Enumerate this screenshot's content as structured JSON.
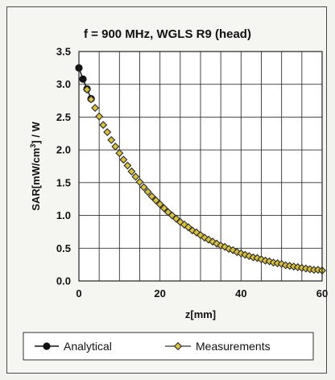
{
  "chart_data": {
    "type": "scatter",
    "title": "f = 900 MHz, WGLS R9 (head)",
    "xlabel": "z[mm]",
    "ylabel": "SAR[mW/cm3] / W",
    "ylabel_parts": {
      "before": "SAR[mW/cm",
      "sup": "3",
      "after": "] / W"
    },
    "xlim": [
      0,
      60
    ],
    "ylim": [
      0,
      3.5
    ],
    "xticks": [
      "0",
      "20",
      "40",
      "60"
    ],
    "yticks": [
      "0.0",
      "0.5",
      "1.0",
      "1.5",
      "2.0",
      "2.5",
      "3.0",
      "3.5"
    ],
    "grid": true,
    "legend_position": "bottom",
    "colors": {
      "analytical": "#111111",
      "measurements_fill": "#d9c23a",
      "measurements_edge": "#2a2a2a",
      "grid": "#333333"
    },
    "series": [
      {
        "name": "Analytical",
        "marker": "filled-circle",
        "x": [
          0,
          1,
          2,
          3
        ],
        "y": [
          3.25,
          3.08,
          2.93,
          2.78
        ]
      },
      {
        "name": "Measurements",
        "marker": "hollow-diamond",
        "x": [
          2,
          3,
          4,
          5,
          6,
          7,
          8,
          9,
          10,
          11,
          12,
          13,
          14,
          15,
          16,
          17,
          18,
          19,
          20,
          21,
          22,
          23,
          24,
          25,
          26,
          27,
          28,
          29,
          30,
          31,
          32,
          33,
          34,
          35,
          36,
          37,
          38,
          39,
          40,
          41,
          42,
          43,
          44,
          45,
          46,
          47,
          48,
          49,
          50,
          51,
          52,
          53,
          54,
          55,
          56,
          57,
          58,
          59,
          60
        ],
        "y": [
          2.92,
          2.77,
          2.64,
          2.51,
          2.38,
          2.27,
          2.15,
          2.05,
          1.95,
          1.85,
          1.76,
          1.67,
          1.59,
          1.51,
          1.43,
          1.36,
          1.29,
          1.23,
          1.17,
          1.11,
          1.05,
          1.0,
          0.95,
          0.9,
          0.86,
          0.82,
          0.77,
          0.74,
          0.7,
          0.66,
          0.63,
          0.6,
          0.57,
          0.54,
          0.52,
          0.49,
          0.47,
          0.44,
          0.42,
          0.4,
          0.38,
          0.36,
          0.35,
          0.33,
          0.31,
          0.3,
          0.28,
          0.27,
          0.26,
          0.24,
          0.23,
          0.22,
          0.21,
          0.2,
          0.19,
          0.18,
          0.17,
          0.17,
          0.16
        ]
      }
    ]
  }
}
